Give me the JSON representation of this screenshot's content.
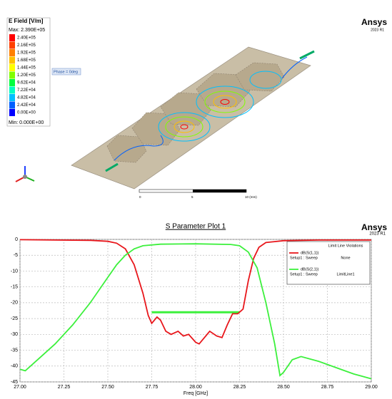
{
  "field_plot": {
    "title": "E Field [V/m]",
    "max_label": "Max: 2.390E+05",
    "min_label": "Min: 0.000E+00",
    "levels": [
      {
        "label": "2.40E+05",
        "color": "#ff0000"
      },
      {
        "label": "2.16E+05",
        "color": "#ff4000"
      },
      {
        "label": "1.92E+05",
        "color": "#ff8000"
      },
      {
        "label": "1.68E+05",
        "color": "#ffc000"
      },
      {
        "label": "1.44E+05",
        "color": "#ffff00"
      },
      {
        "label": "1.20E+05",
        "color": "#80ff00"
      },
      {
        "label": "9.62E+04",
        "color": "#00ff40"
      },
      {
        "label": "7.22E+04",
        "color": "#00ffc0"
      },
      {
        "label": "4.82E+04",
        "color": "#00c0ff"
      },
      {
        "label": "2.42E+04",
        "color": "#0060ff"
      },
      {
        "label": "0.00E+00",
        "color": "#0000ff"
      }
    ],
    "phase_label": "Phase = 0deg",
    "scale_labels": [
      "0",
      "5",
      "10 (mm)"
    ]
  },
  "brand": {
    "name": "Ansys",
    "version": "2023 R1"
  },
  "chart_data": {
    "type": "line",
    "title": "S Parameter Plot 1",
    "xlabel": "Freq [GHz]",
    "xlim": [
      27,
      29
    ],
    "ylim": [
      -45,
      0
    ],
    "xticks": [
      {
        "value": 27,
        "label": "27.00"
      },
      {
        "value": 27.25,
        "label": "27.25"
      },
      {
        "value": 27.5,
        "label": "27.50"
      },
      {
        "value": 27.75,
        "label": "27.75"
      },
      {
        "value": 28,
        "label": "28.00"
      },
      {
        "value": 28.25,
        "label": "28.25"
      },
      {
        "value": 28.5,
        "label": "28.50"
      },
      {
        "value": 28.75,
        "label": "28.75"
      },
      {
        "value": 29,
        "label": "29.00"
      }
    ],
    "yticks": [
      0,
      -5,
      -10,
      -15,
      -20,
      -25,
      -30,
      -35,
      -40,
      -45
    ],
    "grid": true,
    "legend_header": "Limit Line Violations",
    "series": [
      {
        "name": "dB(S(1,1))",
        "setup": "Setup1 : Sweep",
        "violation": "None",
        "color": "#e8161b",
        "x": [
          27,
          27.2,
          27.4,
          27.5,
          27.55,
          27.6,
          27.65,
          27.7,
          27.73,
          27.75,
          27.78,
          27.8,
          27.83,
          27.86,
          27.9,
          27.93,
          27.96,
          28,
          28.02,
          28.05,
          28.08,
          28.12,
          28.15,
          28.18,
          28.21,
          28.24,
          28.27,
          28.3,
          28.33,
          28.36,
          28.4,
          28.5,
          28.7,
          29
        ],
        "values": [
          -0.1,
          -0.2,
          -0.3,
          -0.6,
          -1.2,
          -3,
          -8,
          -17,
          -24,
          -26.5,
          -24.5,
          -25.5,
          -29,
          -30,
          -29,
          -30.5,
          -30,
          -32.5,
          -33,
          -31,
          -29,
          -30.5,
          -31,
          -27,
          -23.5,
          -23.5,
          -22,
          -13,
          -6,
          -2.5,
          -1,
          -0.4,
          -0.2,
          -0.2
        ]
      },
      {
        "name": "dB(S(2,1))",
        "setup": "Setup1 : Sweep",
        "violation": "LimitLine1",
        "color": "#3cf03c",
        "x": [
          27,
          27.03,
          27.1,
          27.2,
          27.3,
          27.4,
          27.5,
          27.55,
          27.6,
          27.65,
          27.7,
          27.8,
          28,
          28.2,
          28.25,
          28.3,
          28.35,
          28.4,
          28.45,
          28.48,
          28.5,
          28.55,
          28.6,
          28.7,
          28.8,
          28.9,
          29
        ],
        "values": [
          -41,
          -41.5,
          -38,
          -33,
          -27,
          -20,
          -12,
          -8,
          -5,
          -3,
          -2,
          -1.5,
          -1.4,
          -1.6,
          -2,
          -4,
          -9,
          -20,
          -33,
          -43,
          -42,
          -38,
          -37,
          -38.5,
          -40.5,
          -42.5,
          -44
        ]
      }
    ],
    "limit_line": {
      "x": [
        27.75,
        28.25
      ],
      "y": -23,
      "color": "#3cf03c"
    }
  }
}
